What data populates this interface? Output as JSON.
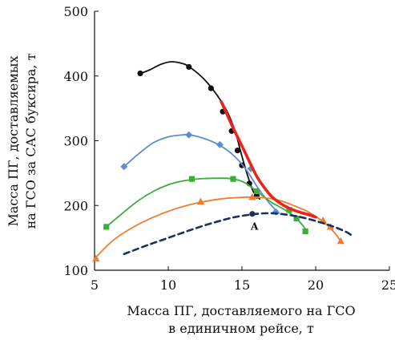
{
  "chart_data": {
    "type": "line",
    "xlabel_lines": [
      "Масса ПГ, доставляемого на ГСО",
      "в единичном рейсе, т"
    ],
    "ylabel_lines": [
      "Масса ПГ, доставляемых",
      "на ГСО за САС буксира, т"
    ],
    "xlim": [
      5,
      25
    ],
    "ylim": [
      100,
      500
    ],
    "xticks": [
      5,
      10,
      15,
      20,
      25
    ],
    "yticks": [
      100,
      200,
      300,
      400,
      500
    ],
    "grid": false,
    "annotation": {
      "text": "А",
      "x": 15.7,
      "y": 187
    },
    "series": [
      {
        "key": "black",
        "color": "#111111",
        "marker": "circle",
        "dash": "",
        "curve": [
          [
            8.0,
            403
          ],
          [
            8.7,
            409
          ],
          [
            9.5,
            418
          ],
          [
            10.2,
            422
          ],
          [
            11.0,
            419
          ],
          [
            11.5,
            413
          ],
          [
            12.3,
            398
          ],
          [
            13.0,
            380
          ],
          [
            13.7,
            357
          ],
          [
            14.2,
            335
          ],
          [
            14.6,
            310
          ],
          [
            14.9,
            284
          ],
          [
            15.2,
            260
          ],
          [
            15.5,
            238
          ],
          [
            15.8,
            220
          ],
          [
            16.2,
            210
          ]
        ],
        "points": [
          [
            8.1,
            404
          ],
          [
            11.4,
            414
          ],
          [
            12.9,
            381
          ],
          [
            13.7,
            345
          ],
          [
            14.3,
            315
          ],
          [
            14.7,
            285
          ],
          [
            15.0,
            262
          ],
          [
            15.5,
            234
          ],
          [
            16.0,
            215
          ]
        ]
      },
      {
        "key": "blue",
        "color": "#5b8ed0",
        "marker": "diamond",
        "dash": "",
        "curve": [
          [
            7.0,
            260
          ],
          [
            8.0,
            280
          ],
          [
            9.0,
            297
          ],
          [
            10.0,
            306
          ],
          [
            11.0,
            309
          ],
          [
            11.5,
            309
          ],
          [
            12.5,
            303
          ],
          [
            13.4,
            294
          ],
          [
            14.3,
            280
          ],
          [
            15.2,
            258
          ],
          [
            16.0,
            230
          ],
          [
            16.7,
            208
          ],
          [
            17.2,
            195
          ],
          [
            17.5,
            188
          ]
        ],
        "points": [
          [
            7.0,
            260
          ],
          [
            11.4,
            309
          ],
          [
            13.5,
            294
          ],
          [
            15.6,
            257
          ],
          [
            17.3,
            190
          ]
        ]
      },
      {
        "key": "green",
        "color": "#3bad3b",
        "marker": "square",
        "dash": "",
        "curve": [
          [
            5.8,
            167
          ],
          [
            7.0,
            190
          ],
          [
            8.0,
            208
          ],
          [
            9.0,
            222
          ],
          [
            10.0,
            232
          ],
          [
            11.0,
            238
          ],
          [
            12.0,
            241
          ],
          [
            13.0,
            242
          ],
          [
            14.0,
            242
          ],
          [
            14.6,
            240
          ],
          [
            15.2,
            235
          ],
          [
            16.0,
            222
          ],
          [
            17.0,
            205
          ],
          [
            18.0,
            192
          ],
          [
            18.7,
            180
          ],
          [
            19.2,
            167
          ],
          [
            19.4,
            160
          ]
        ],
        "points": [
          [
            5.8,
            167
          ],
          [
            11.6,
            241
          ],
          [
            14.4,
            241
          ],
          [
            16.0,
            222
          ],
          [
            18.2,
            193
          ],
          [
            18.7,
            180
          ],
          [
            19.3,
            160
          ]
        ]
      },
      {
        "key": "orange",
        "color": "#ee7d32",
        "marker": "triangle",
        "dash": "",
        "curve": [
          [
            5.0,
            118
          ],
          [
            6.2,
            145
          ],
          [
            7.5,
            165
          ],
          [
            9.0,
            182
          ],
          [
            10.5,
            195
          ],
          [
            12.0,
            204
          ],
          [
            13.5,
            210
          ],
          [
            14.5,
            212
          ],
          [
            15.5,
            213
          ],
          [
            16.5,
            212
          ],
          [
            17.5,
            208
          ],
          [
            18.5,
            200
          ],
          [
            19.5,
            190
          ],
          [
            20.5,
            175
          ],
          [
            21.2,
            160
          ],
          [
            21.7,
            145
          ]
        ],
        "points": [
          [
            5.1,
            118
          ],
          [
            12.2,
            206
          ],
          [
            15.7,
            213
          ],
          [
            20.5,
            177
          ],
          [
            21.0,
            167
          ],
          [
            21.7,
            145
          ]
        ]
      },
      {
        "key": "navy",
        "color": "#1c2f5e",
        "marker": "none",
        "dash": "7 5",
        "curve": [
          [
            7.0,
            125
          ],
          [
            8.5,
            138
          ],
          [
            10.0,
            150
          ],
          [
            11.5,
            162
          ],
          [
            13.0,
            173
          ],
          [
            14.5,
            182
          ],
          [
            16.0,
            187
          ],
          [
            17.0,
            188
          ],
          [
            18.0,
            186
          ],
          [
            19.0,
            182
          ],
          [
            20.0,
            176
          ],
          [
            21.0,
            169
          ],
          [
            22.0,
            160
          ],
          [
            22.5,
            153
          ]
        ],
        "points": [
          [
            15.7,
            187
          ]
        ]
      },
      {
        "key": "red",
        "color": "#e8241b",
        "marker": "none",
        "dash": "",
        "width": 3.6,
        "curve": [
          [
            13.6,
            360
          ],
          [
            14.0,
            340
          ],
          [
            14.5,
            315
          ],
          [
            15.0,
            292
          ],
          [
            15.5,
            268
          ],
          [
            16.0,
            245
          ],
          [
            16.5,
            228
          ],
          [
            17.0,
            214
          ],
          [
            17.5,
            205
          ],
          [
            18.0,
            198
          ],
          [
            18.5,
            193
          ],
          [
            19.0,
            189
          ],
          [
            19.5,
            186
          ],
          [
            20.0,
            182
          ]
        ],
        "points": []
      }
    ]
  }
}
